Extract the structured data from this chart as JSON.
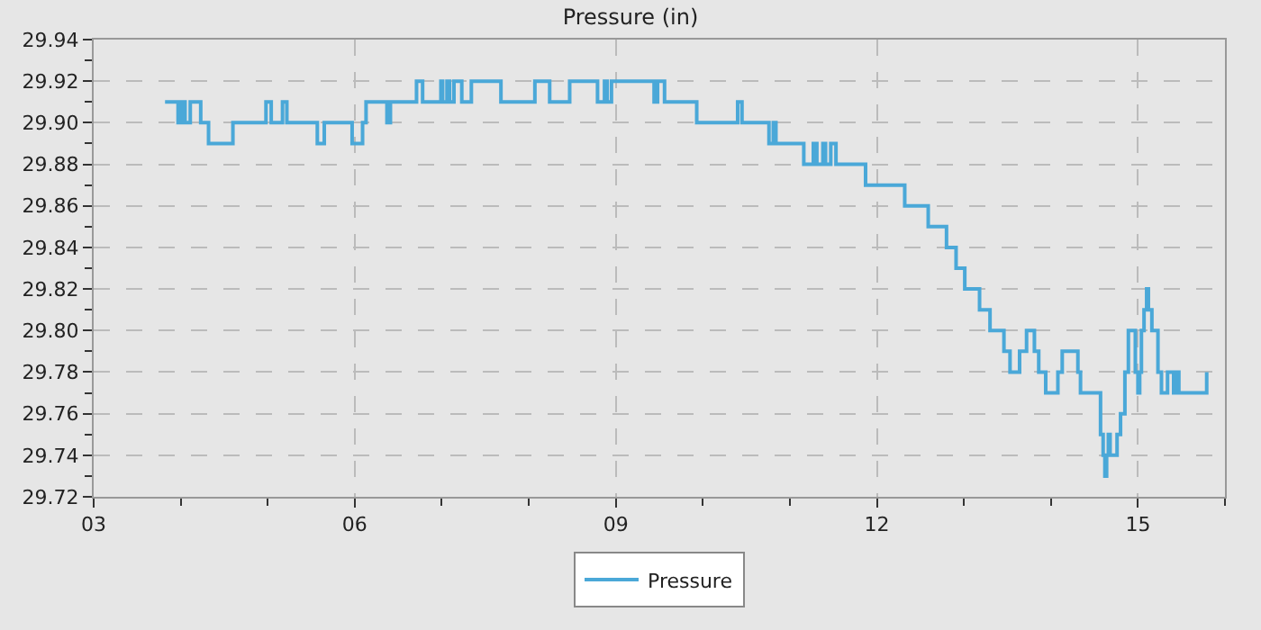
{
  "chart_data": {
    "type": "step",
    "title": "Pressure (in)",
    "x": [
      3.82,
      3.97,
      4.01,
      4.05,
      4.11,
      4.23,
      4.27,
      4.32,
      4.6,
      4.98,
      5.04,
      5.17,
      5.22,
      5.57,
      5.65,
      5.97,
      6.09,
      6.13,
      6.37,
      6.41,
      6.71,
      6.78,
      6.99,
      7.01,
      7.06,
      7.09,
      7.14,
      7.23,
      7.34,
      7.68,
      8.07,
      8.24,
      8.47,
      8.79,
      8.87,
      8.9,
      8.95,
      9.44,
      9.48,
      9.56,
      9.93,
      10.4,
      10.45,
      10.76,
      10.81,
      10.84,
      10.9,
      11.16,
      11.27,
      11.31,
      11.38,
      11.41,
      11.47,
      11.53,
      11.87,
      12.32,
      12.59,
      12.8,
      12.91,
      13.01,
      13.18,
      13.3,
      13.46,
      13.53,
      13.64,
      13.72,
      13.81,
      13.86,
      13.94,
      14.08,
      14.13,
      14.31,
      14.34,
      14.57,
      14.6,
      14.62,
      14.64,
      14.66,
      14.68,
      14.76,
      14.8,
      14.85,
      14.89,
      14.97,
      15.0,
      15.02,
      15.04,
      15.07,
      15.1,
      15.12,
      15.16,
      15.23,
      15.27,
      15.34,
      15.41,
      15.44,
      15.47,
      15.49,
      15.79
    ],
    "series": [
      {
        "name": "Pressure",
        "color": "#4aa8d8",
        "values": [
          29.91,
          29.9,
          29.91,
          29.9,
          29.91,
          29.9,
          29.9,
          29.89,
          29.9,
          29.91,
          29.9,
          29.91,
          29.9,
          29.89,
          29.9,
          29.89,
          29.9,
          29.91,
          29.9,
          29.91,
          29.92,
          29.91,
          29.92,
          29.91,
          29.92,
          29.91,
          29.92,
          29.91,
          29.92,
          29.91,
          29.92,
          29.91,
          29.92,
          29.91,
          29.92,
          29.91,
          29.92,
          29.91,
          29.92,
          29.91,
          29.9,
          29.91,
          29.9,
          29.89,
          29.9,
          29.89,
          29.89,
          29.88,
          29.89,
          29.88,
          29.89,
          29.88,
          29.89,
          29.88,
          29.87,
          29.86,
          29.85,
          29.84,
          29.83,
          29.82,
          29.81,
          29.8,
          29.79,
          29.78,
          29.79,
          29.8,
          29.79,
          29.78,
          29.77,
          29.78,
          29.79,
          29.78,
          29.77,
          29.75,
          29.74,
          29.73,
          29.74,
          29.75,
          29.74,
          29.75,
          29.76,
          29.78,
          29.8,
          29.78,
          29.77,
          29.78,
          29.8,
          29.81,
          29.82,
          29.81,
          29.8,
          29.78,
          29.77,
          29.78,
          29.77,
          29.78,
          29.77,
          29.77,
          29.78
        ]
      }
    ],
    "xlim": [
      3,
      16
    ],
    "xticks": [
      {
        "value": 3,
        "label": "03"
      },
      {
        "value": 4,
        "label": null
      },
      {
        "value": 5,
        "label": null
      },
      {
        "value": 6,
        "label": "06"
      },
      {
        "value": 7,
        "label": null
      },
      {
        "value": 8,
        "label": null
      },
      {
        "value": 9,
        "label": "09"
      },
      {
        "value": 10,
        "label": null
      },
      {
        "value": 11,
        "label": null
      },
      {
        "value": 12,
        "label": "12"
      },
      {
        "value": 13,
        "label": null
      },
      {
        "value": 14,
        "label": null
      },
      {
        "value": 15,
        "label": "15"
      },
      {
        "value": 16,
        "label": null
      }
    ],
    "ylim": [
      29.72,
      29.94
    ],
    "yticks": [
      {
        "value": 29.72,
        "label": "29.72"
      },
      {
        "value": 29.73,
        "label": null
      },
      {
        "value": 29.74,
        "label": "29.74"
      },
      {
        "value": 29.75,
        "label": null
      },
      {
        "value": 29.76,
        "label": "29.76"
      },
      {
        "value": 29.77,
        "label": null
      },
      {
        "value": 29.78,
        "label": "29.78"
      },
      {
        "value": 29.79,
        "label": null
      },
      {
        "value": 29.8,
        "label": "29.80"
      },
      {
        "value": 29.81,
        "label": null
      },
      {
        "value": 29.82,
        "label": "29.82"
      },
      {
        "value": 29.83,
        "label": null
      },
      {
        "value": 29.84,
        "label": "29.84"
      },
      {
        "value": 29.85,
        "label": null
      },
      {
        "value": 29.86,
        "label": "29.86"
      },
      {
        "value": 29.87,
        "label": null
      },
      {
        "value": 29.88,
        "label": "29.88"
      },
      {
        "value": 29.89,
        "label": null
      },
      {
        "value": 29.9,
        "label": "29.90"
      },
      {
        "value": 29.91,
        "label": null
      },
      {
        "value": 29.92,
        "label": "29.92"
      },
      {
        "value": 29.93,
        "label": null
      },
      {
        "value": 29.94,
        "label": "29.94"
      }
    ],
    "grid": true,
    "legend": "bottom",
    "marker": "none",
    "line_style": "solid"
  }
}
